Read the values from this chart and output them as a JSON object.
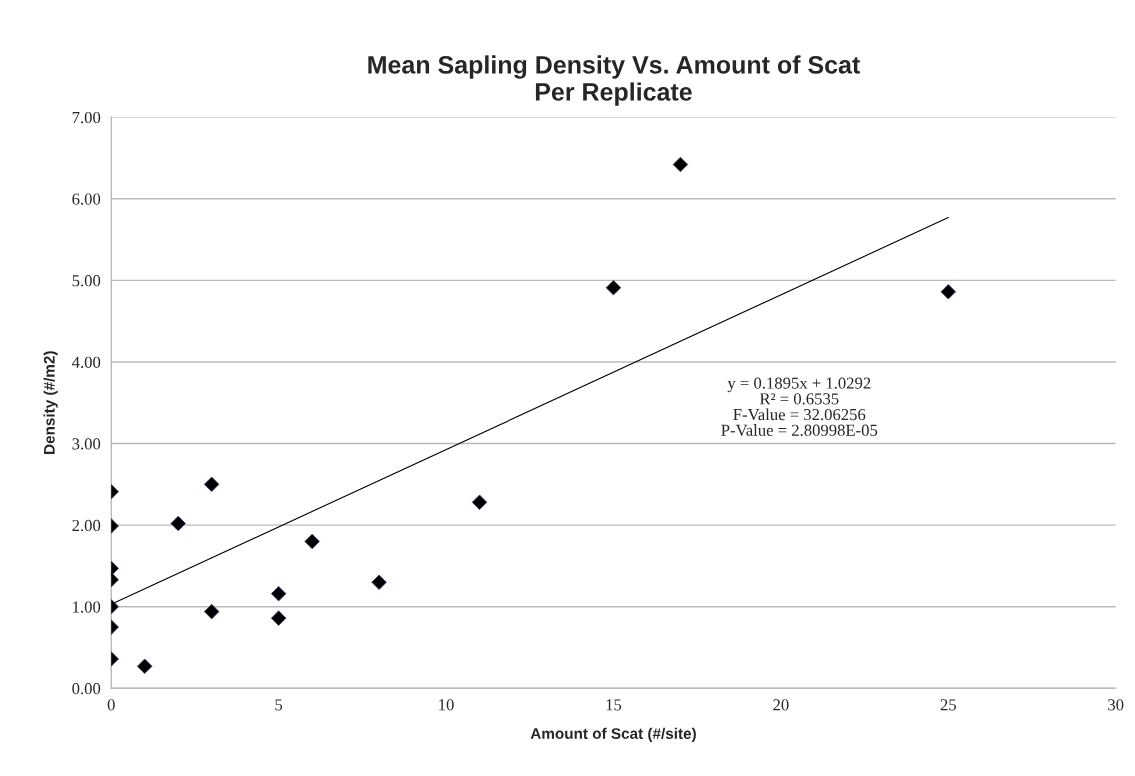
{
  "chart_data": {
    "type": "scatter",
    "title": "Mean Sapling Density Vs. Amount of Scat\nPer Replicate",
    "xlabel": "Amount of Scat (#/site)",
    "ylabel": "Density (#/m2)",
    "series": [
      {
        "color": "#000000",
        "marker": "diamond",
        "x": [
          0,
          0,
          0,
          0,
          0,
          0,
          0,
          1,
          2,
          3,
          3,
          5,
          5,
          6,
          8,
          11,
          15,
          17,
          25
        ],
        "values": [
          2.41,
          1.99,
          1.47,
          1.33,
          1.0,
          0.75,
          0.36,
          0.27,
          2.02,
          2.5,
          0.94,
          1.16,
          0.86,
          1.8,
          1.3,
          2.28,
          4.91,
          6.42,
          4.86
        ]
      },
      {
        "type": "line",
        "color": "#000000",
        "marker": "none",
        "line_style": "solid",
        "x": [
          0,
          25
        ],
        "values": [
          1.03,
          5.77
        ]
      }
    ],
    "annotations": [
      "y = 0.1895x + 1.0292\nR² = 0.6535\nF-Value = 32.06256\nP-Value = 2.80998E-05"
    ],
    "xlim": [
      0,
      30
    ],
    "xticks": [
      0,
      5,
      10,
      15,
      20,
      25,
      30
    ],
    "ylim": [
      0,
      7
    ],
    "yticks": [
      {
        "value": 0,
        "label": "0.00"
      },
      {
        "value": 1,
        "label": "1.00"
      },
      {
        "value": 2,
        "label": "2.00"
      },
      {
        "value": 3,
        "label": "3.00"
      },
      {
        "value": 4,
        "label": "4.00"
      },
      {
        "value": 5,
        "label": "5.00"
      },
      {
        "value": 6,
        "label": "6.00"
      },
      {
        "value": 7,
        "label": "7.00"
      }
    ],
    "grid": "y",
    "legend": false
  }
}
